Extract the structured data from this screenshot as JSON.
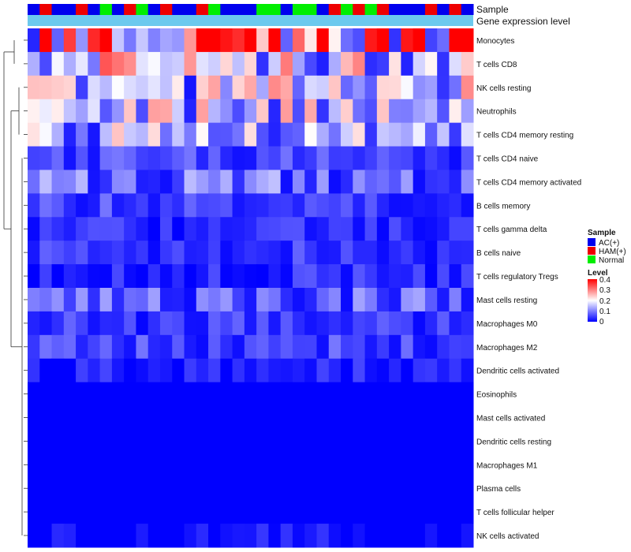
{
  "chart_data": {
    "type": "heatmap",
    "title": "",
    "annotations": {
      "sample_label": "Sample",
      "expression_label": "Gene expression level",
      "sample_track": [
        "AC(+)",
        "HAM(+)",
        "AC(+)",
        "AC(+)",
        "HAM(+)",
        "AC(+)",
        "Normal",
        "AC(+)",
        "HAM(+)",
        "Normal",
        "AC(+)",
        "HAM(+)",
        "AC(+)",
        "AC(+)",
        "HAM(+)",
        "Normal",
        "AC(+)",
        "AC(+)",
        "AC(+)",
        "Normal",
        "Normal",
        "AC(+)",
        "Normal",
        "Normal",
        "AC(+)",
        "HAM(+)",
        "Normal",
        "HAM(+)",
        "Normal",
        "HAM(+)",
        "AC(+)",
        "AC(+)",
        "AC(+)",
        "HAM(+)",
        "AC(+)",
        "HAM(+)",
        "AC(+)"
      ]
    },
    "rows": [
      "Monocytes",
      "T cells CD8",
      "NK cells resting",
      "Neutrophils",
      "T cells CD4 memory resting",
      "T cells CD4 naive",
      "T cells CD4 memory activated",
      "B cells memory",
      "T cells gamma delta",
      "B cells naive",
      "T cells regulatory  Tregs",
      "Mast cells resting",
      "Macrophages M0",
      "Macrophages M2",
      "Dendritic cells activated",
      "Eosinophils",
      "Mast cells activated",
      "Dendritic cells resting",
      "Macrophages M1",
      "Plasma cells",
      "T cells follicular helper",
      "NK cells activated"
    ],
    "row_means": [
      0.3,
      0.2,
      0.16,
      0.15,
      0.13,
      0.05,
      0.08,
      0.05,
      0.03,
      0.04,
      0.03,
      0.07,
      0.04,
      0.05,
      0.02,
      0.0,
      0.0,
      0.0,
      0.0,
      0.0,
      0.0,
      0.005
    ],
    "legend": {
      "sample_title": "Sample",
      "groups": [
        {
          "name": "AC(+)",
          "color": "#0000ee"
        },
        {
          "name": "HAM(+)",
          "color": "#ee0000"
        },
        {
          "name": "Normal",
          "color": "#00ee00"
        }
      ],
      "level_title": "Level",
      "level_ticks": [
        "0.4",
        "0.3",
        "0.2",
        "0.1",
        "0"
      ],
      "level_range": [
        0,
        0.4
      ]
    },
    "colors": {
      "low": "#0000ff",
      "mid": "#ffffff",
      "high": "#ff0000",
      "expression_bar": "#6cc9ee"
    }
  }
}
